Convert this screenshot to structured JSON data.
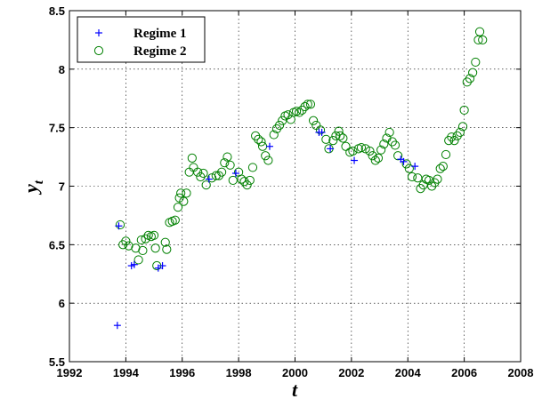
{
  "chart_data": {
    "type": "scatter",
    "title": "",
    "xlabel": "t",
    "ylabel_main": "y",
    "ylabel_sub": "t",
    "xlim": [
      1992,
      2008
    ],
    "ylim": [
      5.5,
      8.5
    ],
    "xticks": [
      1992,
      1994,
      1996,
      1998,
      2000,
      2002,
      2004,
      2006,
      2008
    ],
    "yticks": [
      5.5,
      6,
      6.5,
      7,
      7.5,
      8,
      8.5
    ],
    "xtick_labels": [
      "1992",
      "1994",
      "1996",
      "1998",
      "2000",
      "2002",
      "2004",
      "2006",
      "2008"
    ],
    "ytick_labels": [
      "5.5",
      "6",
      "6.5",
      "7",
      "7.5",
      "8",
      "8.5"
    ],
    "grid": true,
    "legend_position": "top-left",
    "series": [
      {
        "name": "Regime 1",
        "marker": "plus",
        "color": "#0000ff",
        "points": [
          [
            1993.7,
            5.81
          ],
          [
            1993.75,
            6.66
          ],
          [
            1994.2,
            6.32
          ],
          [
            1994.3,
            6.33
          ],
          [
            1995.15,
            6.3
          ],
          [
            1995.3,
            6.32
          ],
          [
            1996.95,
            7.06
          ],
          [
            1997.9,
            7.11
          ],
          [
            1999.1,
            7.34
          ],
          [
            2000.85,
            7.46
          ],
          [
            2000.95,
            7.46
          ],
          [
            2001.25,
            7.32
          ],
          [
            2002.1,
            7.22
          ],
          [
            2003.75,
            7.23
          ],
          [
            2003.85,
            7.21
          ],
          [
            2004.25,
            7.17
          ]
        ]
      },
      {
        "name": "Regime 2",
        "marker": "circle",
        "color": "#008000",
        "points": [
          [
            1993.8,
            6.67
          ],
          [
            1993.9,
            6.5
          ],
          [
            1994.0,
            6.53
          ],
          [
            1994.1,
            6.49
          ],
          [
            1994.35,
            6.47
          ],
          [
            1994.45,
            6.37
          ],
          [
            1994.55,
            6.54
          ],
          [
            1994.6,
            6.45
          ],
          [
            1994.7,
            6.55
          ],
          [
            1994.8,
            6.58
          ],
          [
            1994.9,
            6.57
          ],
          [
            1995.0,
            6.58
          ],
          [
            1995.05,
            6.47
          ],
          [
            1995.1,
            6.32
          ],
          [
            1995.4,
            6.52
          ],
          [
            1995.45,
            6.46
          ],
          [
            1995.55,
            6.69
          ],
          [
            1995.65,
            6.7
          ],
          [
            1995.75,
            6.71
          ],
          [
            1995.85,
            6.82
          ],
          [
            1995.9,
            6.9
          ],
          [
            1995.95,
            6.94
          ],
          [
            1996.05,
            6.87
          ],
          [
            1996.15,
            6.94
          ],
          [
            1996.25,
            7.12
          ],
          [
            1996.35,
            7.24
          ],
          [
            1996.4,
            7.16
          ],
          [
            1996.55,
            7.12
          ],
          [
            1996.65,
            7.08
          ],
          [
            1996.75,
            7.11
          ],
          [
            1996.85,
            7.01
          ],
          [
            1997.05,
            7.07
          ],
          [
            1997.2,
            7.09
          ],
          [
            1997.3,
            7.09
          ],
          [
            1997.4,
            7.12
          ],
          [
            1997.5,
            7.2
          ],
          [
            1997.6,
            7.25
          ],
          [
            1997.7,
            7.18
          ],
          [
            1997.8,
            7.05
          ],
          [
            1998.0,
            7.12
          ],
          [
            1998.1,
            7.06
          ],
          [
            1998.2,
            7.04
          ],
          [
            1998.3,
            7.01
          ],
          [
            1998.4,
            7.05
          ],
          [
            1998.5,
            7.16
          ],
          [
            1998.6,
            7.43
          ],
          [
            1998.7,
            7.4
          ],
          [
            1998.8,
            7.38
          ],
          [
            1998.85,
            7.34
          ],
          [
            1998.95,
            7.26
          ],
          [
            1999.05,
            7.22
          ],
          [
            1999.25,
            7.44
          ],
          [
            1999.35,
            7.49
          ],
          [
            1999.45,
            7.52
          ],
          [
            1999.55,
            7.56
          ],
          [
            1999.65,
            7.6
          ],
          [
            1999.75,
            7.61
          ],
          [
            1999.85,
            7.57
          ],
          [
            1999.95,
            7.63
          ],
          [
            2000.05,
            7.64
          ],
          [
            2000.15,
            7.63
          ],
          [
            2000.25,
            7.65
          ],
          [
            2000.35,
            7.68
          ],
          [
            2000.45,
            7.7
          ],
          [
            2000.55,
            7.7
          ],
          [
            2000.65,
            7.56
          ],
          [
            2000.75,
            7.52
          ],
          [
            2000.9,
            7.48
          ],
          [
            2001.1,
            7.4
          ],
          [
            2001.2,
            7.32
          ],
          [
            2001.35,
            7.39
          ],
          [
            2001.45,
            7.43
          ],
          [
            2001.55,
            7.47
          ],
          [
            2001.6,
            7.43
          ],
          [
            2001.7,
            7.41
          ],
          [
            2001.8,
            7.34
          ],
          [
            2001.95,
            7.29
          ],
          [
            2002.05,
            7.3
          ],
          [
            2002.25,
            7.32
          ],
          [
            2002.35,
            7.33
          ],
          [
            2002.5,
            7.32
          ],
          [
            2002.65,
            7.3
          ],
          [
            2002.75,
            7.26
          ],
          [
            2002.85,
            7.22
          ],
          [
            2002.95,
            7.24
          ],
          [
            2003.05,
            7.31
          ],
          [
            2003.15,
            7.36
          ],
          [
            2003.25,
            7.41
          ],
          [
            2003.35,
            7.46
          ],
          [
            2003.45,
            7.38
          ],
          [
            2003.55,
            7.35
          ],
          [
            2003.65,
            7.26
          ],
          [
            2003.95,
            7.19
          ],
          [
            2004.05,
            7.15
          ],
          [
            2004.15,
            7.08
          ],
          [
            2004.35,
            7.07
          ],
          [
            2004.45,
            6.98
          ],
          [
            2004.55,
            7.01
          ],
          [
            2004.65,
            7.06
          ],
          [
            2004.75,
            7.05
          ],
          [
            2004.85,
            7.0
          ],
          [
            2004.95,
            7.03
          ],
          [
            2005.05,
            7.06
          ],
          [
            2005.15,
            7.15
          ],
          [
            2005.25,
            7.17
          ],
          [
            2005.35,
            7.27
          ],
          [
            2005.45,
            7.39
          ],
          [
            2005.55,
            7.42
          ],
          [
            2005.65,
            7.39
          ],
          [
            2005.75,
            7.43
          ],
          [
            2005.85,
            7.46
          ],
          [
            2005.95,
            7.51
          ],
          [
            2006.0,
            7.65
          ],
          [
            2006.1,
            7.89
          ],
          [
            2006.2,
            7.92
          ],
          [
            2006.3,
            7.97
          ],
          [
            2006.4,
            8.06
          ],
          [
            2006.5,
            8.25
          ],
          [
            2006.55,
            8.32
          ],
          [
            2006.65,
            8.25
          ]
        ]
      }
    ]
  }
}
